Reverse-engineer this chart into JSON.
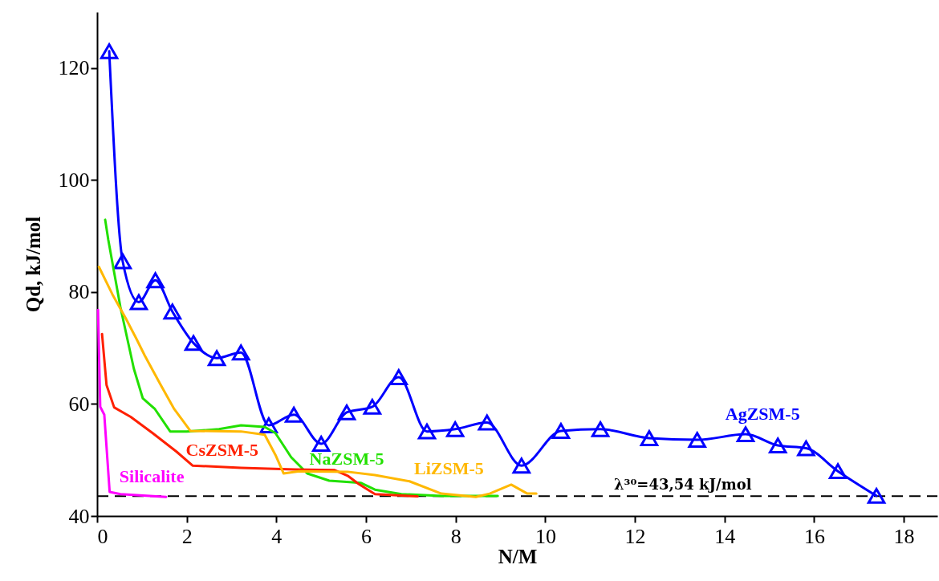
{
  "chart_data": {
    "type": "line",
    "xlabel": "N/M",
    "ylabel": "Qd, kJ/mol",
    "xlim": [
      0,
      18.75
    ],
    "ylim": [
      40,
      130
    ],
    "xticks": [
      0,
      2,
      4,
      6,
      8,
      10,
      12,
      14,
      16,
      18
    ],
    "yticks": [
      40,
      60,
      80,
      100,
      120
    ],
    "grid": false,
    "series": [
      {
        "name": "AgZSM-5",
        "color": "#0000ff",
        "marker": "triangle",
        "x": [
          0.27,
          0.57,
          0.93,
          1.3,
          1.68,
          2.15,
          2.67,
          3.21,
          3.83,
          4.39,
          5.0,
          5.57,
          6.14,
          6.73,
          7.36,
          7.99,
          8.7,
          9.47,
          10.35,
          11.23,
          12.32,
          13.39,
          14.47,
          15.19,
          15.82,
          16.53,
          17.39
        ],
        "values": [
          123.0,
          85.5,
          78.2,
          82.1,
          76.5,
          70.9,
          68.2,
          69.2,
          56.2,
          58.1,
          52.9,
          58.5,
          59.5,
          64.8,
          55.1,
          55.5,
          56.7,
          49.0,
          55.2,
          55.5,
          53.9,
          53.6,
          54.6,
          52.6,
          52.1,
          48.0,
          43.6
        ]
      },
      {
        "name": "NaZSM-5",
        "color": "#22e000",
        "x": [
          0.18,
          0.25,
          0.52,
          0.82,
          1.02,
          1.29,
          1.63,
          2.0,
          2.72,
          3.21,
          3.74,
          3.98,
          4.33,
          4.69,
          5.18,
          5.89,
          6.2,
          6.79,
          7.68,
          8.94
        ],
        "values": [
          92.9,
          89.3,
          77.3,
          66.3,
          61.0,
          59.1,
          55.1,
          55.1,
          55.5,
          56.2,
          55.9,
          54.8,
          50.5,
          47.6,
          46.3,
          45.9,
          44.7,
          43.9,
          43.6,
          43.6
        ]
      },
      {
        "name": "CsZSM-5",
        "color": "#ff2000",
        "x": [
          0.11,
          0.21,
          0.38,
          0.75,
          1.24,
          1.77,
          2.13,
          3.21,
          4.41,
          5.3,
          5.59,
          5.84,
          6.2,
          7.15
        ],
        "values": [
          72.5,
          63.4,
          59.4,
          57.7,
          54.8,
          51.5,
          49.0,
          48.6,
          48.3,
          48.2,
          47.2,
          45.7,
          43.9,
          43.5
        ]
      },
      {
        "name": "LiZSM-5",
        "color": "#ffb800",
        "x": [
          0.04,
          0.34,
          0.64,
          0.88,
          1.06,
          1.42,
          1.72,
          2.08,
          3.21,
          3.74,
          3.98,
          4.16,
          4.51,
          5.59,
          6.2,
          6.97,
          7.68,
          8.45,
          8.76,
          9.24,
          9.6,
          9.8
        ],
        "values": [
          84.5,
          79.6,
          75.3,
          71.6,
          68.7,
          63.4,
          59.1,
          55.2,
          55.1,
          54.5,
          50.9,
          47.6,
          48.0,
          47.9,
          47.3,
          46.2,
          44.0,
          43.4,
          44.0,
          45.6,
          44.0,
          44.0
        ]
      },
      {
        "name": "Silicalite",
        "color": "#ff00ff",
        "x": [
          0.02,
          0.07,
          0.16,
          0.28,
          0.52,
          1.54
        ],
        "values": [
          76.8,
          59.5,
          58.1,
          44.3,
          43.9,
          43.4
        ]
      }
    ],
    "ref_lines": [
      {
        "axis": "y",
        "value": 43.54,
        "label": "λ³⁰=43,54 kJ/mol",
        "color": "#000000",
        "line_style": "dashed"
      }
    ]
  }
}
